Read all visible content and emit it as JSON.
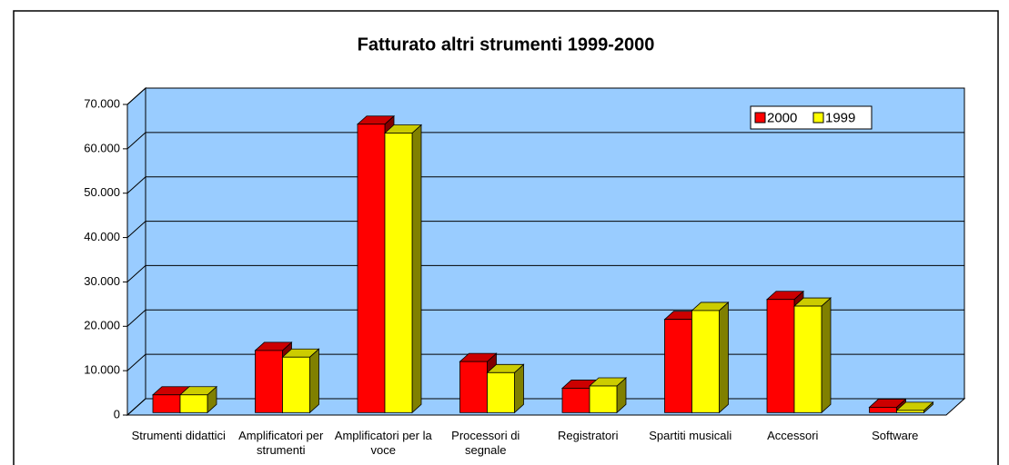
{
  "chart_data": {
    "type": "bar3d",
    "title": "Fatturato altri strumenti 1999-2000",
    "categories": [
      "Strumenti didattici",
      "Amplificatori per strumenti",
      "Amplificatori per la voce",
      "Processori di segnale",
      "Registratori",
      "Spartiti musicali",
      "Accessori",
      "Software"
    ],
    "series": [
      {
        "name": "2000",
        "color": "#ff0000",
        "values": [
          4000,
          14000,
          65000,
          11500,
          5500,
          21000,
          25500,
          1200
        ]
      },
      {
        "name": "1999",
        "color": "#ffff00",
        "values": [
          4000,
          12500,
          63000,
          9000,
          6000,
          23000,
          24000,
          500
        ]
      }
    ],
    "ylim": [
      0,
      70000
    ],
    "yticks": [
      0,
      {
        "value": 10000,
        "label": "10.000"
      },
      {
        "value": 20000,
        "label": "20.000"
      },
      {
        "value": 30000,
        "label": "30.000"
      },
      {
        "value": 40000,
        "label": "40.000"
      },
      {
        "value": 50000,
        "label": "50.000"
      },
      {
        "value": 60000,
        "label": "60.000"
      },
      {
        "value": 70000,
        "label": "70.000"
      }
    ],
    "grid": true,
    "legend": "top-right"
  }
}
